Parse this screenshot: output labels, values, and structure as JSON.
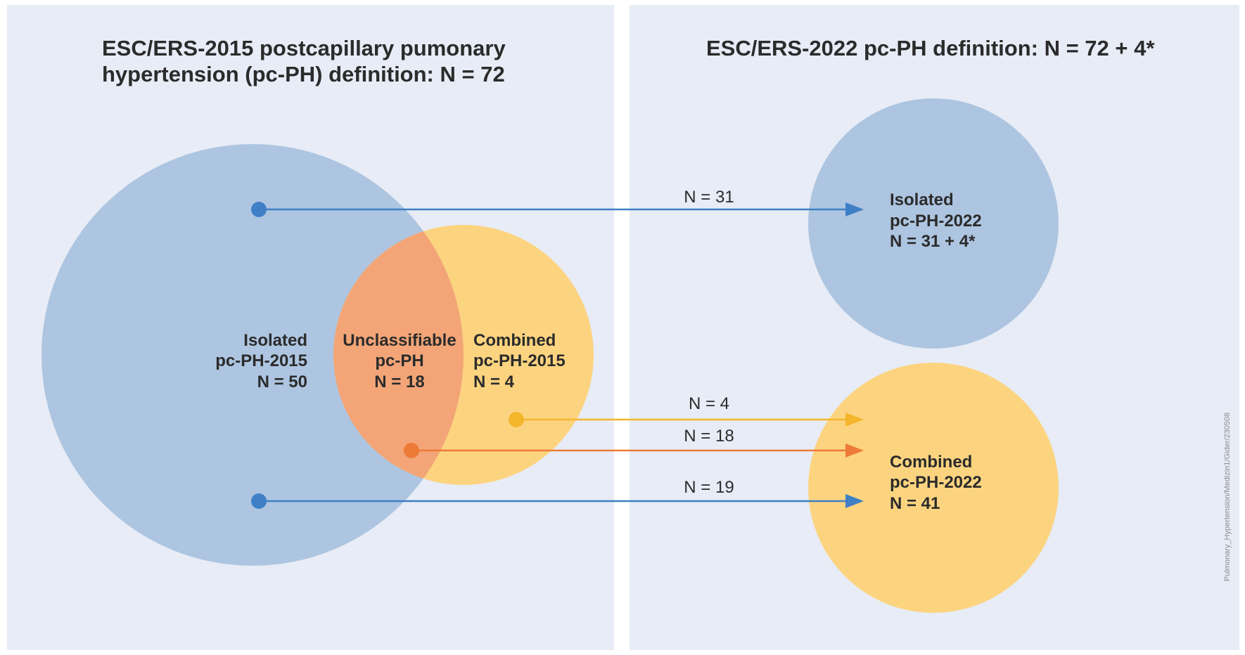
{
  "left_panel": {
    "title_line1": "ESC/ERS-2015 postcapillary pumonary",
    "title_line2": "hypertension (pc-PH) definition: N = 72",
    "isolated": [
      "Isolated",
      "pc-PH-2015",
      "N = 50"
    ],
    "unclassifiable": [
      "Unclassifiable",
      "pc-PH",
      "N = 18"
    ],
    "combined": [
      "Combined",
      "pc-PH-2015",
      "N = 4"
    ]
  },
  "right_panel": {
    "title": "ESC/ERS-2022 pc-PH definition: N = 72 + 4*",
    "isolated": [
      "Isolated",
      "pc-PH-2022",
      "N = 31 + 4*"
    ],
    "combined": [
      "Combined",
      "pc-PH-2022",
      "N = 41"
    ]
  },
  "flows": [
    {
      "label": "N = 31",
      "color": "#3f7fc6"
    },
    {
      "label": "N = 4",
      "color": "#f5b62d"
    },
    {
      "label": "N = 18",
      "color": "#ef7a38"
    },
    {
      "label": "N = 19",
      "color": "#3f7fc6"
    }
  ],
  "colors": {
    "panel_bg": "#e7ecf6",
    "isolated_circle": "#adc5e0",
    "combined_circle": "#fcd480",
    "overlap": "#f3a577",
    "blue_arrow": "#3f7fc6",
    "yellow_arrow": "#f5b62d",
    "orange_arrow": "#ef7a38"
  },
  "credit": "Pulmonary_Hypertension/Medizin1/Gider/230508"
}
